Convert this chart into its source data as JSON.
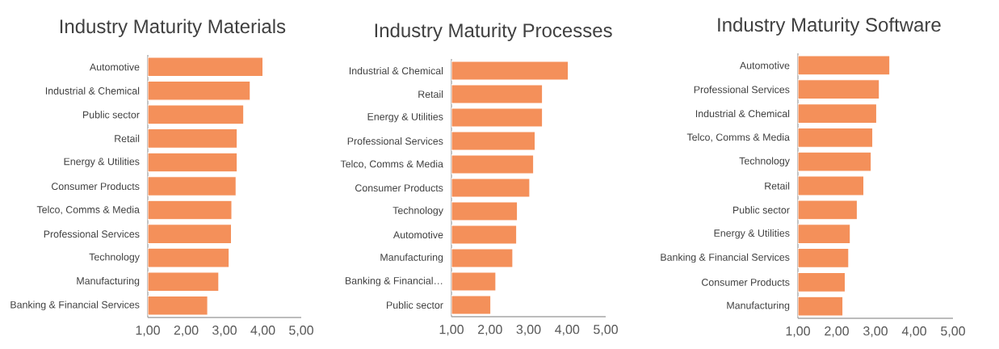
{
  "chart_data": [
    {
      "type": "bar",
      "orientation": "horizontal",
      "title": "Industry Maturity Materials",
      "color": "#f4905a",
      "categories": [
        "Automotive",
        "Industrial & Chemical",
        "Public sector",
        "Retail",
        "Energy & Utilities",
        "Consumer Products",
        "Telco, Comms & Media",
        "Professional Services",
        "Technology",
        "Manufacturing",
        "Banking & Financial Services"
      ],
      "values": [
        4.0,
        3.67,
        3.5,
        3.33,
        3.33,
        3.3,
        3.19,
        3.18,
        3.12,
        2.85,
        2.56
      ],
      "xlim": [
        1,
        5
      ],
      "xticks": [
        {
          "value": 1,
          "label": "1,00"
        },
        {
          "value": 2,
          "label": "2,00"
        },
        {
          "value": 3,
          "label": "3,00"
        },
        {
          "value": 4,
          "label": "4,00"
        },
        {
          "value": 5,
          "label": "5,00"
        }
      ]
    },
    {
      "type": "bar",
      "orientation": "horizontal",
      "title": "Industry Maturity Processes",
      "color": "#f4905a",
      "categories": [
        "Industrial & Chemical",
        "Retail",
        "Energy & Utilities",
        "Professional Services",
        "Telco, Comms & Media",
        "Consumer Products",
        "Technology",
        "Automotive",
        "Manufacturing",
        "Banking & Financial…",
        "Public sector"
      ],
      "values": [
        4.03,
        3.36,
        3.36,
        3.17,
        3.13,
        3.03,
        2.71,
        2.69,
        2.59,
        2.15,
        2.02
      ],
      "xlim": [
        1,
        5
      ],
      "xticks": [
        {
          "value": 1,
          "label": "1,00"
        },
        {
          "value": 2,
          "label": "2,00"
        },
        {
          "value": 3,
          "label": "3,00"
        },
        {
          "value": 4,
          "label": "4,00"
        },
        {
          "value": 5,
          "label": "5,00"
        }
      ]
    },
    {
      "type": "bar",
      "orientation": "horizontal",
      "title": "Industry Maturity Software",
      "color": "#f4905a",
      "categories": [
        "Automotive",
        "Professional Services",
        "Industrial & Chemical",
        "Telco, Comms & Media",
        "Technology",
        "Retail",
        "Public sector",
        "Energy & Utilities",
        "Banking & Financial Services",
        "Consumer Products",
        "Manufacturing"
      ],
      "values": [
        3.37,
        3.1,
        3.03,
        2.93,
        2.89,
        2.7,
        2.53,
        2.35,
        2.31,
        2.22,
        2.16
      ],
      "xlim": [
        1,
        5
      ],
      "xticks": [
        {
          "value": 1,
          "label": "1,00"
        },
        {
          "value": 2,
          "label": "2,00"
        },
        {
          "value": 3,
          "label": "3,00"
        },
        {
          "value": 4,
          "label": "4,00"
        },
        {
          "value": 5,
          "label": "5,00"
        }
      ]
    }
  ]
}
